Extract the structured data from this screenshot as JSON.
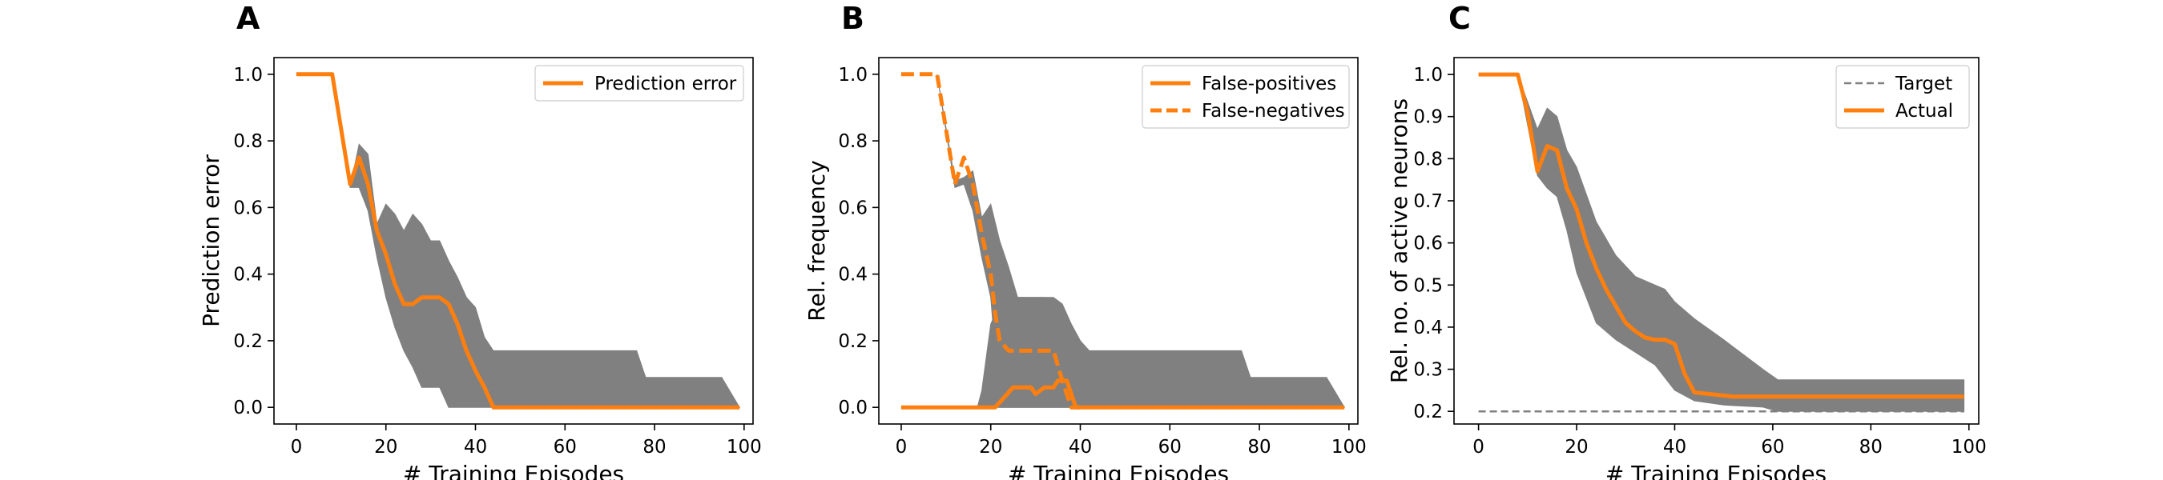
{
  "colors": {
    "line": "#ff7f0e",
    "band": "#808080",
    "target": "#808080",
    "axis": "#000000",
    "legend_border": "#cccccc"
  },
  "chart_data": [
    {
      "panel": "A",
      "type": "line",
      "xlabel": "# Training Episodes",
      "ylabel": "Prediction error",
      "xlim": [
        -5,
        102
      ],
      "ylim": [
        -0.05,
        1.05
      ],
      "xticks": [
        0,
        20,
        40,
        60,
        80,
        100
      ],
      "yticks": [
        0.0,
        0.2,
        0.4,
        0.6,
        0.8,
        1.0
      ],
      "ytick_labels": [
        "0.0",
        "0.2",
        "0.4",
        "0.6",
        "0.8",
        "1.0"
      ],
      "legend_position": "top-right",
      "grid": false,
      "bands": [
        {
          "x": [
            0,
            8,
            12,
            14,
            16,
            18,
            20,
            22,
            24,
            26,
            28,
            30,
            32,
            34,
            36,
            38,
            40,
            42,
            44,
            76,
            78,
            95,
            99
          ],
          "upper": [
            1.0,
            1.0,
            0.66,
            0.79,
            0.76,
            0.55,
            0.61,
            0.58,
            0.53,
            0.58,
            0.55,
            0.5,
            0.5,
            0.44,
            0.39,
            0.33,
            0.3,
            0.21,
            0.17,
            0.17,
            0.09,
            0.09,
            0.0
          ],
          "lower": [
            1.0,
            1.0,
            0.66,
            0.66,
            0.59,
            0.45,
            0.33,
            0.24,
            0.17,
            0.12,
            0.06,
            0.06,
            0.06,
            0.0,
            0.0,
            0.0,
            0.0,
            0.0,
            0.0,
            0.0,
            0.0,
            0.0,
            0.0
          ]
        }
      ],
      "series": [
        {
          "name": "Prediction error",
          "style": "solid",
          "x": [
            0,
            8,
            12,
            14,
            16,
            18,
            20,
            22,
            24,
            26,
            28,
            30,
            32,
            34,
            36,
            38,
            40,
            42,
            44,
            99
          ],
          "y": [
            1.0,
            1.0,
            0.67,
            0.75,
            0.67,
            0.53,
            0.46,
            0.37,
            0.31,
            0.31,
            0.33,
            0.33,
            0.33,
            0.31,
            0.25,
            0.17,
            0.11,
            0.06,
            0.0,
            0.0
          ]
        }
      ]
    },
    {
      "panel": "B",
      "type": "line",
      "xlabel": "# Training Episodes",
      "ylabel": "Rel. frequency",
      "xlim": [
        -5,
        102
      ],
      "ylim": [
        -0.05,
        1.05
      ],
      "xticks": [
        0,
        20,
        40,
        60,
        80,
        100
      ],
      "yticks": [
        0.0,
        0.2,
        0.4,
        0.6,
        0.8,
        1.0
      ],
      "ytick_labels": [
        "0.0",
        "0.2",
        "0.4",
        "0.6",
        "0.8",
        "1.0"
      ],
      "legend_position": "top-right",
      "grid": false,
      "bands": [
        {
          "x": [
            0,
            17,
            18,
            19,
            20,
            22,
            24,
            26,
            28,
            32,
            34,
            36,
            38,
            40,
            42,
            44,
            76,
            78,
            95,
            99
          ],
          "upper": [
            0.0,
            0.0,
            0.05,
            0.15,
            0.25,
            0.31,
            0.33,
            0.33,
            0.33,
            0.33,
            0.33,
            0.31,
            0.25,
            0.2,
            0.17,
            0.17,
            0.17,
            0.09,
            0.09,
            0.0
          ],
          "lower": [
            0.0,
            0.0,
            0.0,
            0.0,
            0.0,
            0.0,
            0.0,
            0.0,
            0.0,
            0.0,
            0.0,
            0.0,
            0.0,
            0.0,
            0.0,
            0.0,
            0.0,
            0.0,
            0.0,
            0.0
          ]
        },
        {
          "x": [
            8,
            12,
            14,
            16,
            18,
            20,
            22,
            24,
            26,
            28,
            32,
            34,
            36,
            38
          ],
          "upper": [
            1.0,
            0.68,
            0.69,
            0.71,
            0.57,
            0.61,
            0.5,
            0.42,
            0.33,
            0.33,
            0.33,
            0.25,
            0.17,
            0.0
          ],
          "lower": [
            1.0,
            0.66,
            0.67,
            0.59,
            0.45,
            0.33,
            0.0,
            0.0,
            0.0,
            0.0,
            0.0,
            0.0,
            0.0,
            0.0
          ]
        }
      ],
      "series": [
        {
          "name": "False-positives",
          "style": "solid",
          "x": [
            0,
            21,
            23,
            25,
            29,
            30,
            32,
            34,
            35,
            37,
            39,
            41,
            99
          ],
          "y": [
            0.0,
            0.0,
            0.03,
            0.06,
            0.06,
            0.04,
            0.06,
            0.06,
            0.08,
            0.08,
            0.0,
            0.0,
            0.0
          ],
          "legend_as": "solid"
        },
        {
          "name": "False-negatives",
          "style": "dashed",
          "x": [
            0,
            8,
            12,
            14,
            16,
            18,
            20,
            21,
            22,
            24,
            26,
            28,
            30,
            32,
            34,
            36,
            38,
            40
          ],
          "y": [
            1.0,
            1.0,
            0.67,
            0.75,
            0.67,
            0.52,
            0.4,
            0.28,
            0.2,
            0.17,
            0.17,
            0.17,
            0.17,
            0.17,
            0.17,
            0.08,
            0.0,
            0.0
          ]
        }
      ]
    },
    {
      "panel": "C",
      "type": "line",
      "xlabel": "# Training Episodes",
      "ylabel": "Rel. no. of active neurons",
      "xlim": [
        -5,
        102
      ],
      "ylim": [
        0.17,
        1.04
      ],
      "xticks": [
        0,
        20,
        40,
        60,
        80,
        100
      ],
      "yticks": [
        0.2,
        0.3,
        0.4,
        0.5,
        0.6,
        0.7,
        0.8,
        0.9,
        1.0
      ],
      "ytick_labels": [
        "0.2",
        "0.3",
        "0.4",
        "0.5",
        "0.6",
        "0.7",
        "0.8",
        "0.9",
        "1.0"
      ],
      "legend_position": "top-right",
      "grid": false,
      "bands": [
        {
          "x": [
            0,
            8,
            12,
            14,
            16,
            18,
            20,
            24,
            28,
            32,
            36,
            38,
            40,
            44,
            50,
            58,
            61,
            99
          ],
          "upper": [
            1.0,
            1.0,
            0.87,
            0.92,
            0.9,
            0.82,
            0.78,
            0.65,
            0.57,
            0.52,
            0.5,
            0.49,
            0.46,
            0.42,
            0.37,
            0.3,
            0.275,
            0.275
          ],
          "lower": [
            1.0,
            1.0,
            0.76,
            0.73,
            0.71,
            0.63,
            0.53,
            0.41,
            0.37,
            0.34,
            0.31,
            0.28,
            0.25,
            0.225,
            0.215,
            0.21,
            0.2,
            0.2
          ]
        }
      ],
      "series": [
        {
          "name": "Target",
          "style": "dashed-thin",
          "x": [
            0,
            99
          ],
          "y": [
            0.2,
            0.2
          ]
        },
        {
          "name": "Actual",
          "style": "solid",
          "x": [
            0,
            8,
            10,
            12,
            14,
            16,
            18,
            20,
            22,
            24,
            26,
            28,
            30,
            32,
            34,
            36,
            38,
            40,
            42,
            44,
            48,
            52,
            99
          ],
          "y": [
            1.0,
            1.0,
            0.91,
            0.77,
            0.83,
            0.82,
            0.73,
            0.68,
            0.6,
            0.54,
            0.49,
            0.45,
            0.41,
            0.39,
            0.375,
            0.37,
            0.37,
            0.36,
            0.29,
            0.245,
            0.24,
            0.235,
            0.235
          ]
        }
      ]
    }
  ]
}
